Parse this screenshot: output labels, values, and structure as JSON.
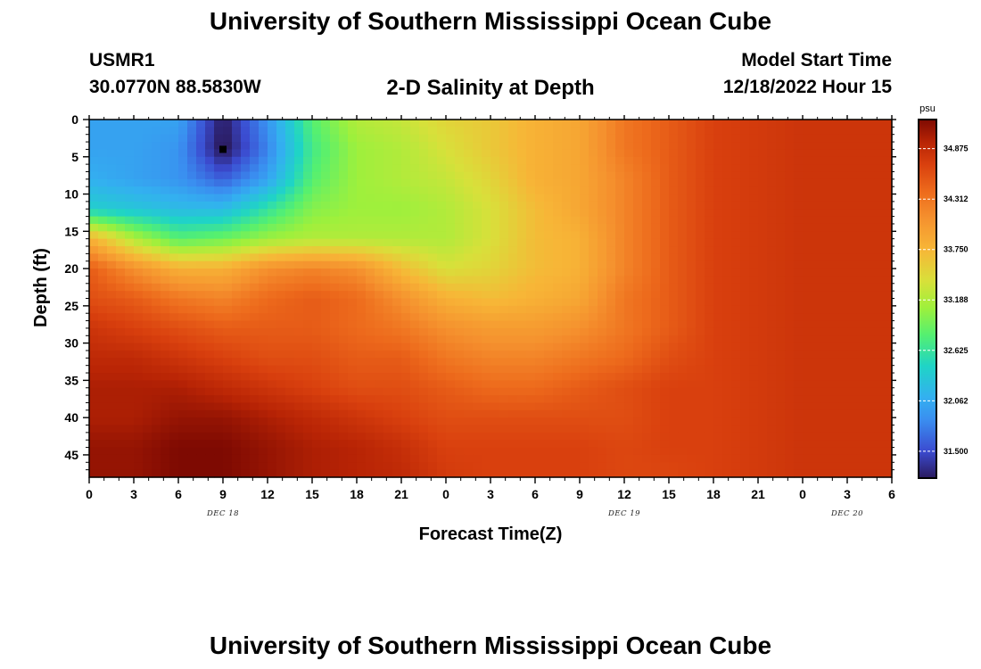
{
  "header": {
    "title": "University of Southern Mississippi Ocean Cube",
    "station_id": "USMR1",
    "station_coords": "30.0770N  88.5830W",
    "subtitle": "2-D Salinity at Depth",
    "model_start_label": "Model Start Time",
    "model_start_value": "12/18/2022 Hour 15"
  },
  "footer": {
    "title": "University of Southern Mississippi Ocean Cube"
  },
  "chart_data": {
    "type": "heatmap",
    "title": "2-D Salinity at Depth",
    "xlabel": "Forecast Time(Z)",
    "ylabel": "Depth (ft)",
    "x_tick_labels": [
      "0",
      "3",
      "6",
      "9",
      "12",
      "15",
      "18",
      "21",
      "0",
      "3",
      "6",
      "9",
      "12",
      "15",
      "18",
      "21",
      "0",
      "3",
      "6"
    ],
    "x_range_hours": [
      0,
      54
    ],
    "date_labels": [
      {
        "text": "DEC 18",
        "hour": 9
      },
      {
        "text": "DEC 19",
        "hour": 36
      },
      {
        "text": "DEC 20",
        "hour": 51
      }
    ],
    "y_ticks": [
      0,
      5,
      10,
      15,
      20,
      25,
      30,
      35,
      40,
      45
    ],
    "ylim": [
      0,
      48
    ],
    "y_inverted": true,
    "colorbar": {
      "unit": "psu",
      "ticks": [
        "34.875",
        "34.312",
        "33.750",
        "33.188",
        "32.625",
        "32.062",
        "31.500"
      ],
      "range": [
        31.2,
        35.2
      ],
      "stops": [
        {
          "value": 31.2,
          "color": "#2a1a5e"
        },
        {
          "value": 31.5,
          "color": "#3b4bd0"
        },
        {
          "value": 31.85,
          "color": "#3a8ef0"
        },
        {
          "value": 32.1,
          "color": "#33b0f0"
        },
        {
          "value": 32.45,
          "color": "#1fd4c6"
        },
        {
          "value": 32.8,
          "color": "#55f070"
        },
        {
          "value": 33.1,
          "color": "#9ef03c"
        },
        {
          "value": 33.4,
          "color": "#d8e03a"
        },
        {
          "value": 33.75,
          "color": "#f7b637"
        },
        {
          "value": 34.1,
          "color": "#f5912e"
        },
        {
          "value": 34.4,
          "color": "#ed6a1c"
        },
        {
          "value": 34.7,
          "color": "#d9400e"
        },
        {
          "value": 34.95,
          "color": "#b82405"
        },
        {
          "value": 35.2,
          "color": "#7e0a02"
        }
      ]
    },
    "grid_x_hours": [
      0,
      3,
      6,
      9,
      12,
      15,
      18,
      21,
      24,
      27,
      30,
      33,
      36,
      39,
      42,
      45,
      48,
      51,
      54
    ],
    "grid_depths_ft": [
      0,
      4,
      8,
      12,
      16,
      20,
      24,
      28,
      32,
      36,
      40,
      44,
      48
    ],
    "salinity_grid": [
      [
        32.0,
        32.0,
        32.0,
        31.2,
        31.9,
        32.8,
        33.2,
        33.3,
        33.5,
        33.6,
        33.8,
        33.9,
        34.3,
        34.5,
        34.7,
        34.75,
        34.8,
        34.8,
        34.8
      ],
      [
        32.0,
        32.0,
        31.9,
        31.15,
        31.8,
        32.7,
        33.1,
        33.2,
        33.4,
        33.6,
        33.8,
        33.9,
        34.3,
        34.5,
        34.7,
        34.75,
        34.8,
        34.8,
        34.8
      ],
      [
        32.1,
        32.0,
        31.9,
        31.6,
        32.0,
        32.8,
        33.1,
        33.2,
        33.3,
        33.5,
        33.8,
        33.9,
        34.2,
        34.5,
        34.7,
        34.75,
        34.8,
        34.8,
        34.8
      ],
      [
        32.4,
        32.3,
        32.2,
        32.2,
        32.6,
        33.0,
        33.1,
        33.1,
        33.2,
        33.4,
        33.7,
        33.9,
        34.2,
        34.5,
        34.7,
        34.75,
        34.8,
        34.8,
        34.8
      ],
      [
        33.8,
        33.2,
        32.8,
        32.9,
        33.1,
        33.2,
        33.2,
        33.2,
        33.2,
        33.4,
        33.7,
        33.8,
        34.2,
        34.5,
        34.7,
        34.75,
        34.8,
        34.8,
        34.8
      ],
      [
        34.5,
        34.1,
        33.8,
        33.8,
        34.1,
        34.2,
        34.1,
        33.7,
        33.4,
        33.5,
        33.7,
        33.8,
        34.2,
        34.5,
        34.7,
        34.75,
        34.8,
        34.8,
        34.8
      ],
      [
        34.6,
        34.5,
        34.3,
        34.2,
        34.4,
        34.5,
        34.4,
        34.1,
        33.8,
        33.7,
        33.8,
        33.9,
        34.3,
        34.5,
        34.7,
        34.75,
        34.8,
        34.8,
        34.8
      ],
      [
        34.8,
        34.7,
        34.6,
        34.5,
        34.5,
        34.5,
        34.4,
        34.3,
        34.1,
        34.0,
        34.0,
        34.1,
        34.3,
        34.5,
        34.7,
        34.75,
        34.8,
        34.8,
        34.8
      ],
      [
        34.9,
        34.9,
        34.8,
        34.7,
        34.6,
        34.6,
        34.5,
        34.5,
        34.3,
        34.2,
        34.2,
        34.3,
        34.4,
        34.6,
        34.7,
        34.75,
        34.8,
        34.8,
        34.8
      ],
      [
        35.0,
        35.0,
        35.0,
        34.9,
        34.8,
        34.7,
        34.6,
        34.6,
        34.5,
        34.4,
        34.4,
        34.5,
        34.6,
        34.7,
        34.7,
        34.75,
        34.8,
        34.8,
        34.8
      ],
      [
        35.0,
        35.0,
        35.1,
        35.1,
        35.0,
        34.9,
        34.8,
        34.7,
        34.6,
        34.6,
        34.6,
        34.6,
        34.6,
        34.7,
        34.7,
        34.75,
        34.8,
        34.8,
        34.8
      ],
      [
        35.1,
        35.1,
        35.2,
        35.2,
        35.1,
        35.0,
        34.95,
        34.85,
        34.7,
        34.7,
        34.7,
        34.7,
        34.65,
        34.7,
        34.7,
        34.75,
        34.8,
        34.8,
        34.8
      ],
      [
        35.1,
        35.1,
        35.2,
        35.2,
        35.1,
        35.0,
        34.95,
        34.9,
        34.75,
        34.7,
        34.7,
        34.7,
        34.65,
        34.65,
        34.7,
        34.75,
        34.8,
        34.8,
        34.8
      ]
    ],
    "marker": {
      "hour": 9,
      "depth_ft": 4
    }
  }
}
